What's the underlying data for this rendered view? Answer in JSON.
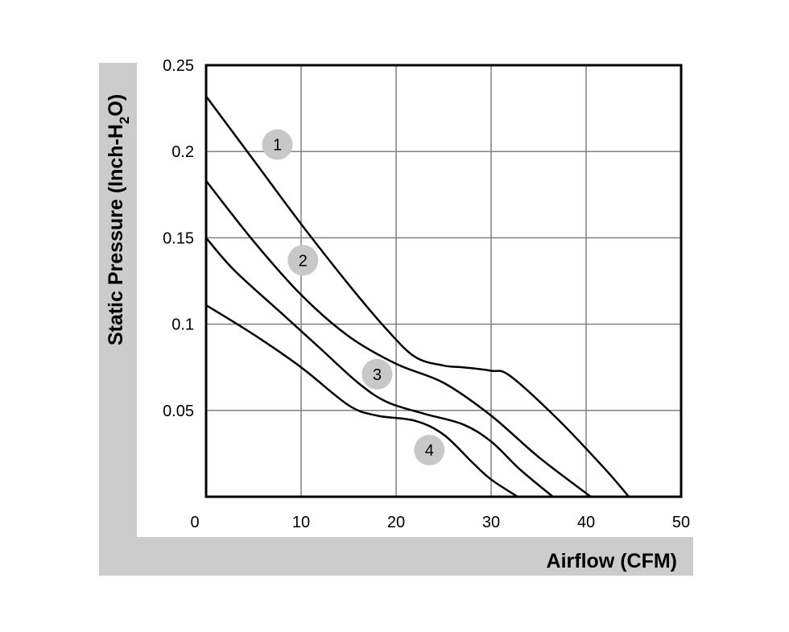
{
  "chart_data": {
    "type": "line",
    "xlabel": "Airflow (CFM)",
    "ylabel_parts": {
      "before_subscript": "Static Pressure (Inch-H",
      "subscript": "2",
      "after_subscript": "O)"
    },
    "xlim": [
      0,
      50
    ],
    "ylim": [
      0,
      0.25
    ],
    "x_ticks": [
      0,
      10,
      20,
      30,
      40,
      50
    ],
    "x_tick_labels": [
      "0",
      "10",
      "20",
      "30",
      "40",
      "50"
    ],
    "y_ticks": [
      0.05,
      0.1,
      0.15,
      0.2,
      0.25
    ],
    "y_tick_labels": [
      "0.05",
      "0.1",
      "0.15",
      "0.2",
      "0.25"
    ],
    "grid": true,
    "colors": {
      "line": "#000000",
      "grid": "#808080",
      "axis_band": "#cccccc",
      "marker_fill": "#c8c8c8"
    },
    "series": [
      {
        "label": "1",
        "label_at": [
          7.5,
          0.204
        ],
        "points": [
          [
            0,
            0.232
          ],
          [
            5,
            0.195
          ],
          [
            10,
            0.158
          ],
          [
            15,
            0.123
          ],
          [
            19,
            0.097
          ],
          [
            22,
            0.081
          ],
          [
            25,
            0.076
          ],
          [
            27,
            0.075
          ],
          [
            30,
            0.073
          ],
          [
            32,
            0.07
          ],
          [
            37,
            0.045
          ],
          [
            42,
            0.016
          ],
          [
            44.5,
            0.0
          ]
        ]
      },
      {
        "label": "2",
        "label_at": [
          10.2,
          0.137
        ],
        "points": [
          [
            0,
            0.183
          ],
          [
            5,
            0.148
          ],
          [
            10,
            0.117
          ],
          [
            15,
            0.093
          ],
          [
            20,
            0.077
          ],
          [
            25,
            0.066
          ],
          [
            30,
            0.047
          ],
          [
            35,
            0.023
          ],
          [
            40.5,
            0.0
          ]
        ]
      },
      {
        "label": "3",
        "label_at": [
          18,
          0.071
        ],
        "points": [
          [
            0,
            0.15
          ],
          [
            3,
            0.131
          ],
          [
            8,
            0.106
          ],
          [
            12,
            0.086
          ],
          [
            16,
            0.066
          ],
          [
            19,
            0.055
          ],
          [
            23,
            0.048
          ],
          [
            27,
            0.042
          ],
          [
            30,
            0.032
          ],
          [
            33,
            0.016
          ],
          [
            36.5,
            0.0
          ]
        ]
      },
      {
        "label": "4",
        "label_at": [
          23.5,
          0.027
        ],
        "points": [
          [
            0,
            0.111
          ],
          [
            5,
            0.094
          ],
          [
            10,
            0.075
          ],
          [
            15,
            0.053
          ],
          [
            18,
            0.047
          ],
          [
            22,
            0.044
          ],
          [
            25,
            0.036
          ],
          [
            28,
            0.02
          ],
          [
            30,
            0.01
          ],
          [
            32.8,
            0.0
          ]
        ]
      }
    ]
  }
}
